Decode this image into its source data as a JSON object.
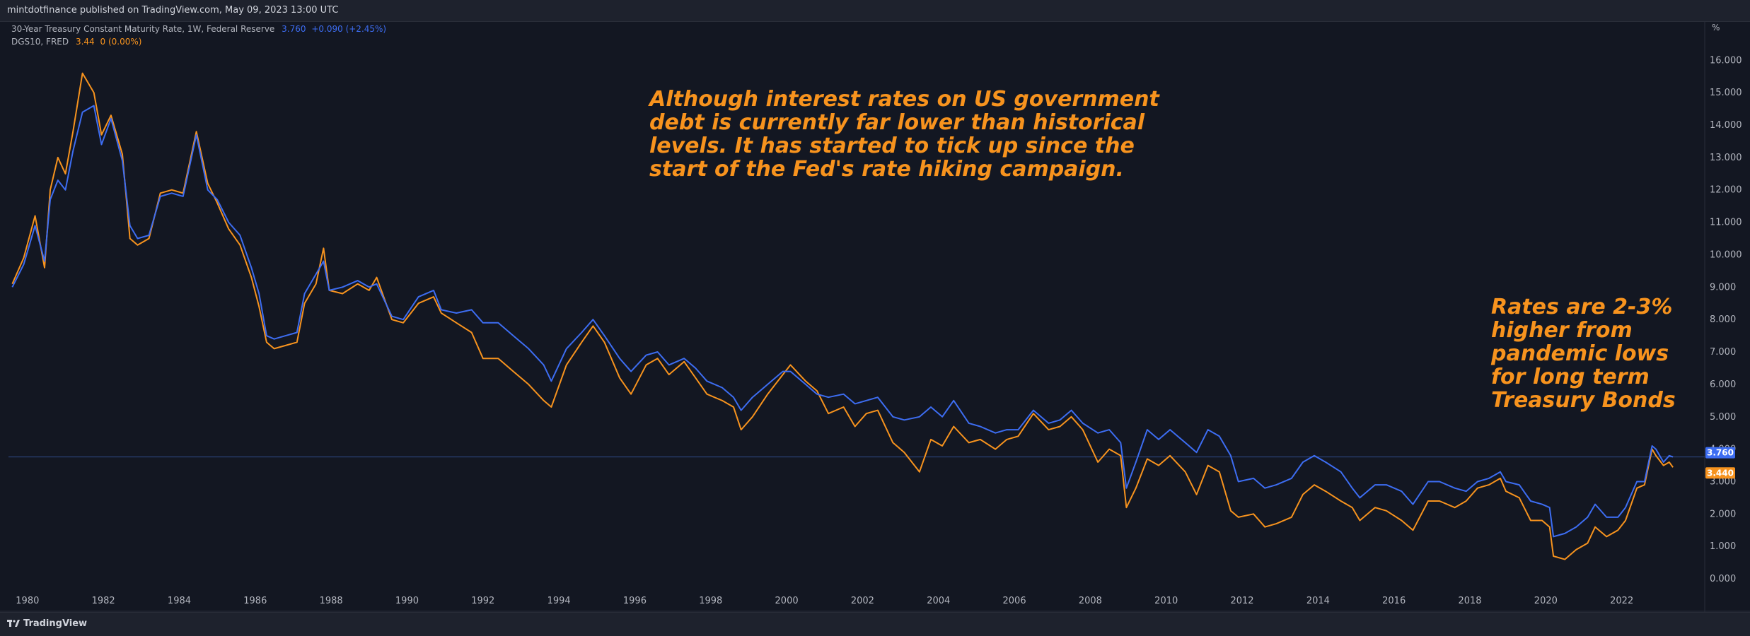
{
  "header": {
    "publisher_text": "mintdotfinance published on TradingView.com, May 09, 2023 13:00 UTC"
  },
  "legend": [
    {
      "name": "30-Year Treasury Constant Maturity Rate, 1W, Federal Reserve",
      "value": "3.760",
      "change": "+0.090 (+2.45%)",
      "color": "#3d6df2"
    },
    {
      "name": "DGS10, FRED",
      "value": "3.44",
      "change": "0 (0.00%)",
      "color": "#f7931e"
    }
  ],
  "unit_label": "%",
  "annotations": [
    {
      "text": "Although interest rates on US government\ndebt is currently far lower than historical\nlevels. It has started to tick up since the\nstart of the Fed's rate hiking campaign.",
      "color": "#f7931e"
    },
    {
      "text": "Rates are 2-3%\nhigher from\npandemic lows\nfor long term\nTreasury Bonds",
      "color": "#f7931e"
    }
  ],
  "price_tags": [
    {
      "label": "3.760",
      "value": 3.76,
      "color": "#3d6df2"
    },
    {
      "label": "3.440",
      "value": 3.44,
      "color": "#f7931e"
    }
  ],
  "footer": {
    "brand": "TradingView",
    "logo_icon": "tradingview-logo-icon"
  },
  "chart_data": {
    "type": "line",
    "title": "",
    "xlabel": "",
    "ylabel": "",
    "x_ticks": [
      "1980",
      "1982",
      "1984",
      "1986",
      "1988",
      "1990",
      "1992",
      "1994",
      "1996",
      "1998",
      "2000",
      "2002",
      "2004",
      "2006",
      "2008",
      "2010",
      "2012",
      "2014",
      "2016",
      "2018",
      "2020",
      "2022"
    ],
    "y_ticks": [
      "0.000",
      "1.000",
      "2.000",
      "3.000",
      "4.000",
      "5.000",
      "6.000",
      "7.000",
      "8.000",
      "9.000",
      "10.000",
      "11.000",
      "12.000",
      "13.000",
      "14.000",
      "15.000",
      "16.000"
    ],
    "xlim": [
      1979.5,
      2024.0
    ],
    "ylim": [
      -0.5,
      16.9
    ],
    "grid": false,
    "legend_position": "top-left",
    "series": [
      {
        "name": "30-Year Treasury Constant Maturity Rate, 1W, Federal Reserve",
        "color": "#3d6df2",
        "x": [
          1979.6,
          1979.9,
          1980.2,
          1980.45,
          1980.6,
          1980.8,
          1981.0,
          1981.2,
          1981.45,
          1981.75,
          1981.95,
          1982.2,
          1982.5,
          1982.7,
          1982.9,
          1983.2,
          1983.5,
          1983.8,
          1984.1,
          1984.45,
          1984.75,
          1985.0,
          1985.3,
          1985.6,
          1985.9,
          1986.1,
          1986.3,
          1986.5,
          1986.8,
          1987.1,
          1987.3,
          1987.6,
          1987.8,
          1987.95,
          1988.3,
          1988.7,
          1989.0,
          1989.2,
          1989.6,
          1989.9,
          1990.3,
          1990.7,
          1990.9,
          1991.3,
          1991.7,
          1992.0,
          1992.4,
          1992.8,
          1993.2,
          1993.6,
          1993.8,
          1994.2,
          1994.6,
          1994.9,
          1995.2,
          1995.6,
          1995.9,
          1996.3,
          1996.6,
          1996.9,
          1997.3,
          1997.6,
          1997.9,
          1998.3,
          1998.6,
          1998.8,
          1999.1,
          1999.5,
          1999.9,
          2000.1,
          2000.5,
          2000.8,
          2001.1,
          2001.5,
          2001.8,
          2002.1,
          2002.4,
          2002.8,
          2003.1,
          2003.5,
          2003.8,
          2004.1,
          2004.4,
          2004.8,
          2005.1,
          2005.5,
          2005.8,
          2006.1,
          2006.5,
          2006.9,
          2007.2,
          2007.5,
          2007.8,
          2008.2,
          2008.5,
          2008.8,
          2008.95,
          2009.2,
          2009.5,
          2009.8,
          2010.1,
          2010.5,
          2010.8,
          2011.1,
          2011.4,
          2011.7,
          2011.9,
          2012.3,
          2012.6,
          2012.9,
          2013.3,
          2013.6,
          2013.9,
          2014.2,
          2014.6,
          2014.9,
          2015.1,
          2015.5,
          2015.8,
          2016.2,
          2016.5,
          2016.9,
          2017.2,
          2017.6,
          2017.9,
          2018.2,
          2018.5,
          2018.8,
          2018.95,
          2019.3,
          2019.6,
          2019.9,
          2020.1,
          2020.2,
          2020.5,
          2020.8,
          2021.1,
          2021.3,
          2021.6,
          2021.9,
          2022.1,
          2022.4,
          2022.6,
          2022.8,
          2022.9,
          2023.1,
          2023.25,
          2023.35
        ],
        "values": [
          9.0,
          9.7,
          10.9,
          9.8,
          11.7,
          12.3,
          12.0,
          13.2,
          14.4,
          14.6,
          13.4,
          14.2,
          12.9,
          10.9,
          10.5,
          10.6,
          11.8,
          11.9,
          11.8,
          13.7,
          12.0,
          11.7,
          11.0,
          10.6,
          9.6,
          8.8,
          7.5,
          7.4,
          7.5,
          7.6,
          8.8,
          9.4,
          9.8,
          8.9,
          9.0,
          9.2,
          9.0,
          9.1,
          8.1,
          8.0,
          8.7,
          8.9,
          8.3,
          8.2,
          8.3,
          7.9,
          7.9,
          7.5,
          7.1,
          6.6,
          6.1,
          7.1,
          7.6,
          8.0,
          7.5,
          6.8,
          6.4,
          6.9,
          7.0,
          6.6,
          6.8,
          6.5,
          6.1,
          5.9,
          5.6,
          5.2,
          5.6,
          6.0,
          6.4,
          6.4,
          6.0,
          5.7,
          5.6,
          5.7,
          5.4,
          5.5,
          5.6,
          5.0,
          4.9,
          5.0,
          5.3,
          5.0,
          5.5,
          4.8,
          4.7,
          4.5,
          4.6,
          4.6,
          5.2,
          4.8,
          4.9,
          5.2,
          4.8,
          4.5,
          4.6,
          4.2,
          2.8,
          3.6,
          4.6,
          4.3,
          4.6,
          4.2,
          3.9,
          4.6,
          4.4,
          3.8,
          3.0,
          3.1,
          2.8,
          2.9,
          3.1,
          3.6,
          3.8,
          3.6,
          3.3,
          2.8,
          2.5,
          2.9,
          2.9,
          2.7,
          2.3,
          3.0,
          3.0,
          2.8,
          2.7,
          3.0,
          3.1,
          3.3,
          3.0,
          2.9,
          2.4,
          2.3,
          2.2,
          1.3,
          1.4,
          1.6,
          1.9,
          2.3,
          1.9,
          1.9,
          2.2,
          3.0,
          3.0,
          4.1,
          4.0,
          3.6,
          3.8,
          3.76
        ]
      },
      {
        "name": "DGS10, FRED",
        "color": "#f7931e",
        "x": [
          1979.6,
          1979.9,
          1980.2,
          1980.45,
          1980.6,
          1980.8,
          1981.0,
          1981.2,
          1981.45,
          1981.75,
          1981.95,
          1982.2,
          1982.5,
          1982.7,
          1982.9,
          1983.2,
          1983.5,
          1983.8,
          1984.1,
          1984.45,
          1984.75,
          1985.0,
          1985.3,
          1985.6,
          1985.9,
          1986.1,
          1986.3,
          1986.5,
          1986.8,
          1987.1,
          1987.3,
          1987.6,
          1987.8,
          1987.95,
          1988.3,
          1988.7,
          1989.0,
          1989.2,
          1989.6,
          1989.9,
          1990.3,
          1990.7,
          1990.9,
          1991.3,
          1991.7,
          1992.0,
          1992.4,
          1992.8,
          1993.2,
          1993.6,
          1993.8,
          1994.2,
          1994.6,
          1994.9,
          1995.2,
          1995.6,
          1995.9,
          1996.3,
          1996.6,
          1996.9,
          1997.3,
          1997.6,
          1997.9,
          1998.3,
          1998.6,
          1998.8,
          1999.1,
          1999.5,
          1999.9,
          2000.1,
          2000.5,
          2000.8,
          2001.1,
          2001.5,
          2001.8,
          2002.1,
          2002.4,
          2002.8,
          2003.1,
          2003.5,
          2003.8,
          2004.1,
          2004.4,
          2004.8,
          2005.1,
          2005.5,
          2005.8,
          2006.1,
          2006.5,
          2006.9,
          2007.2,
          2007.5,
          2007.8,
          2008.2,
          2008.5,
          2008.8,
          2008.95,
          2009.2,
          2009.5,
          2009.8,
          2010.1,
          2010.5,
          2010.8,
          2011.1,
          2011.4,
          2011.7,
          2011.9,
          2012.3,
          2012.6,
          2012.9,
          2013.3,
          2013.6,
          2013.9,
          2014.2,
          2014.6,
          2014.9,
          2015.1,
          2015.5,
          2015.8,
          2016.2,
          2016.5,
          2016.9,
          2017.2,
          2017.6,
          2017.9,
          2018.2,
          2018.5,
          2018.8,
          2018.95,
          2019.3,
          2019.6,
          2019.9,
          2020.1,
          2020.2,
          2020.5,
          2020.8,
          2021.1,
          2021.3,
          2021.6,
          2021.9,
          2022.1,
          2022.4,
          2022.6,
          2022.8,
          2022.9,
          2023.1,
          2023.25,
          2023.35
        ],
        "values": [
          9.1,
          9.9,
          11.2,
          9.6,
          12.0,
          13.0,
          12.5,
          13.8,
          15.6,
          15.0,
          13.7,
          14.3,
          13.1,
          10.5,
          10.3,
          10.5,
          11.9,
          12.0,
          11.9,
          13.8,
          12.2,
          11.6,
          10.8,
          10.3,
          9.3,
          8.4,
          7.3,
          7.1,
          7.2,
          7.3,
          8.5,
          9.1,
          10.2,
          8.9,
          8.8,
          9.1,
          8.9,
          9.3,
          8.0,
          7.9,
          8.5,
          8.7,
          8.2,
          7.9,
          7.6,
          6.8,
          6.8,
          6.4,
          6.0,
          5.5,
          5.3,
          6.6,
          7.3,
          7.8,
          7.3,
          6.2,
          5.7,
          6.6,
          6.8,
          6.3,
          6.7,
          6.2,
          5.7,
          5.5,
          5.3,
          4.6,
          5.0,
          5.7,
          6.3,
          6.6,
          6.1,
          5.8,
          5.1,
          5.3,
          4.7,
          5.1,
          5.2,
          4.2,
          3.9,
          3.3,
          4.3,
          4.1,
          4.7,
          4.2,
          4.3,
          4.0,
          4.3,
          4.4,
          5.1,
          4.6,
          4.7,
          5.0,
          4.6,
          3.6,
          4.0,
          3.8,
          2.2,
          2.8,
          3.7,
          3.5,
          3.8,
          3.3,
          2.6,
          3.5,
          3.3,
          2.1,
          1.9,
          2.0,
          1.6,
          1.7,
          1.9,
          2.6,
          2.9,
          2.7,
          2.4,
          2.2,
          1.8,
          2.2,
          2.1,
          1.8,
          1.5,
          2.4,
          2.4,
          2.2,
          2.4,
          2.8,
          2.9,
          3.1,
          2.7,
          2.5,
          1.8,
          1.8,
          1.6,
          0.7,
          0.6,
          0.9,
          1.1,
          1.6,
          1.3,
          1.5,
          1.8,
          2.8,
          2.9,
          4.0,
          3.8,
          3.5,
          3.6,
          3.44
        ]
      }
    ]
  }
}
